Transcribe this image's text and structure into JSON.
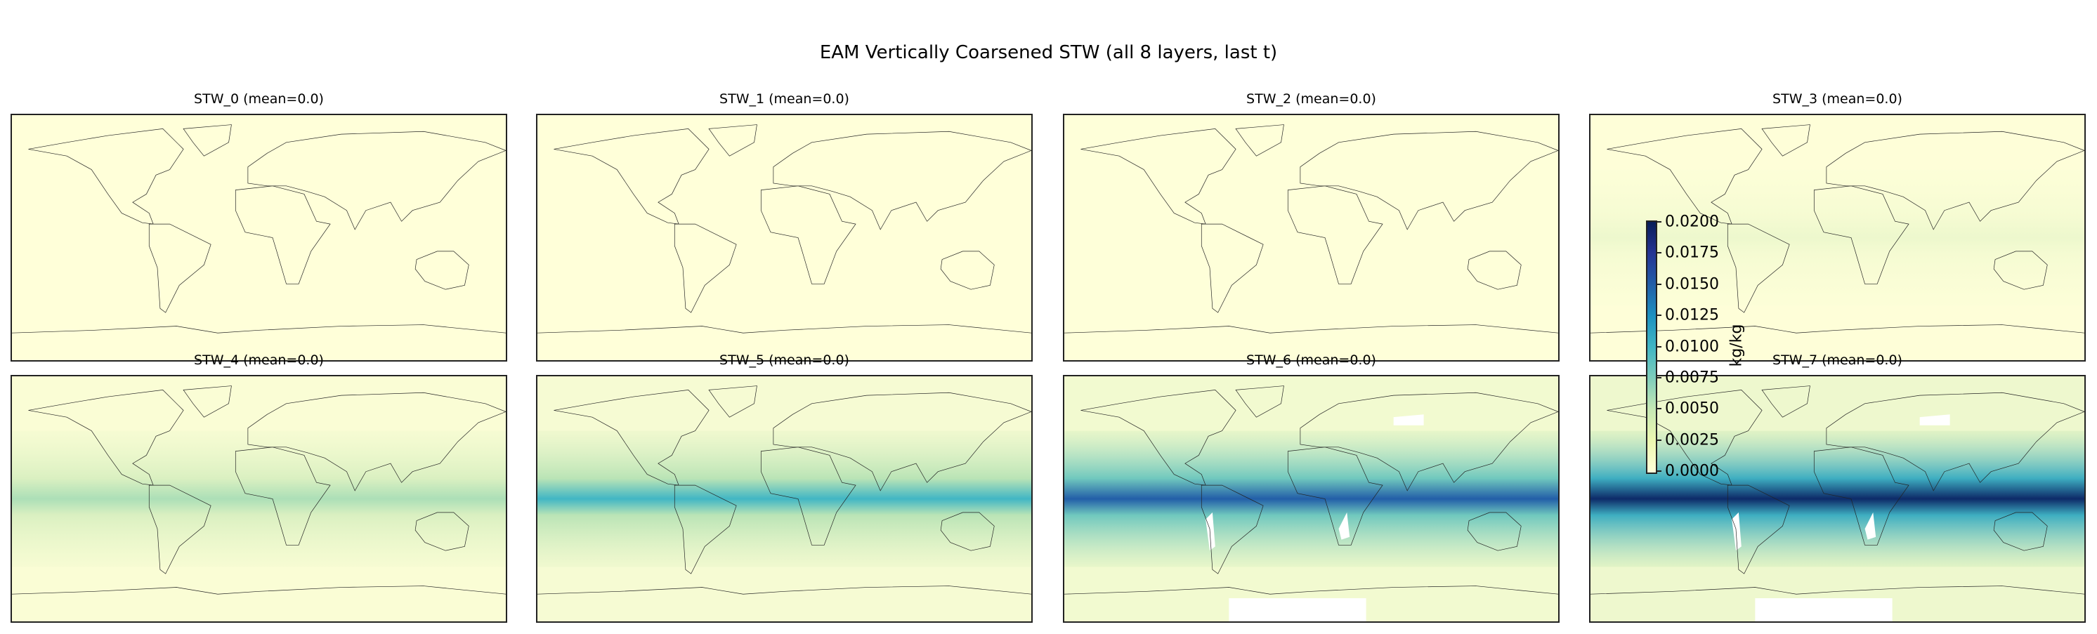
{
  "figure": {
    "title": "EAM Vertically Coarsened STW (all 8 layers, last t)"
  },
  "panels": [
    {
      "title": "STW_0 (mean=0.0)",
      "band_intensity": 0.0
    },
    {
      "title": "STW_1 (mean=0.0)",
      "band_intensity": 0.01
    },
    {
      "title": "STW_2 (mean=0.0)",
      "band_intensity": 0.03
    },
    {
      "title": "STW_3 (mean=0.0)",
      "band_intensity": 0.08
    },
    {
      "title": "STW_4 (mean=0.0)",
      "band_intensity": 0.3
    },
    {
      "title": "STW_5 (mean=0.0)",
      "band_intensity": 0.5
    },
    {
      "title": "STW_6 (mean=0.0)",
      "band_intensity": 0.75
    },
    {
      "title": "STW_7 (mean=0.0)",
      "band_intensity": 0.95
    }
  ],
  "colorbar": {
    "label": "kg/kg",
    "colormap": "YlGnBu",
    "range": [
      0.0,
      0.02
    ],
    "ticks": [
      "0.0000",
      "0.0025",
      "0.0050",
      "0.0075",
      "0.0100",
      "0.0125",
      "0.0150",
      "0.0175",
      "0.0200"
    ]
  }
}
